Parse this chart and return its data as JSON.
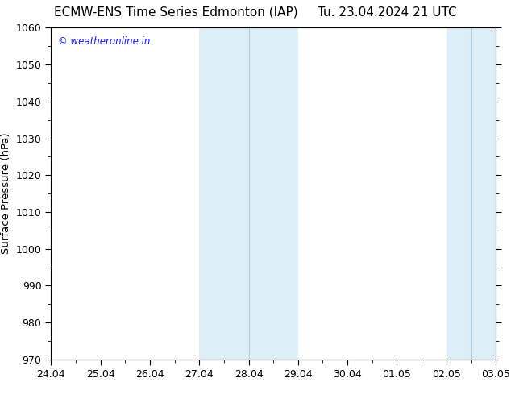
{
  "title_left": "ECMW-ENS Time Series Edmonton (IAP)",
  "title_right": "Tu. 23.04.2024 21 UTC",
  "ylabel": "Surface Pressure (hPa)",
  "watermark": "© weatheronline.in",
  "watermark_color": "#1a1aff",
  "xlim_start": 0,
  "xlim_end": 9,
  "ylim": [
    970,
    1060
  ],
  "yticks": [
    970,
    980,
    990,
    1000,
    1010,
    1020,
    1030,
    1040,
    1050,
    1060
  ],
  "xtick_labels": [
    "24.04",
    "25.04",
    "26.04",
    "27.04",
    "28.04",
    "29.04",
    "30.04",
    "01.05",
    "02.05",
    "03.05"
  ],
  "background_color": "#ffffff",
  "plot_background_color": "#ffffff",
  "shaded_regions": [
    {
      "x_start": 3,
      "x_end": 5,
      "color": "#ddeef8"
    },
    {
      "x_start": 8,
      "x_end": 9,
      "color": "#ddeef8"
    }
  ],
  "shade_divider_color": "#b0cce0",
  "shade_dividers": [
    4,
    8.5
  ],
  "title_fontsize": 11,
  "axis_label_fontsize": 9.5,
  "tick_fontsize": 9,
  "watermark_fontsize": 8.5
}
